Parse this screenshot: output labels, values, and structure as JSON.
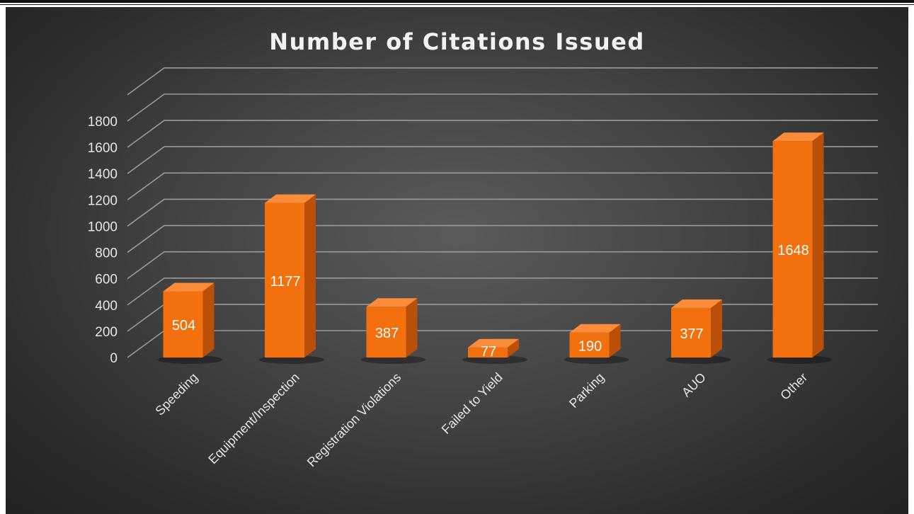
{
  "chart_data": {
    "type": "bar",
    "title": "Number of Citations Issued",
    "categories": [
      "Speeding",
      "Equipment/Inspection",
      "Registration Violations",
      "Failed to Yield",
      "Parking",
      "AUO",
      "Other"
    ],
    "values": [
      504,
      1177,
      387,
      77,
      190,
      377,
      1648
    ],
    "data_labels": [
      "504",
      "1177",
      "387",
      "77",
      "190",
      "377",
      "1648"
    ],
    "yticks": [
      0,
      200,
      400,
      600,
      800,
      1000,
      1200,
      1400,
      1600,
      1800
    ],
    "ylim": [
      0,
      1800
    ],
    "grid": true,
    "style": "3d-column",
    "colors": {
      "bar_front": "#f2700e",
      "bar_side": "#b94f08",
      "bar_top": "#fa8c3a",
      "background": "#3a3a3a",
      "gridline": "#9a9a9a",
      "text": "#e6e6e6"
    }
  }
}
